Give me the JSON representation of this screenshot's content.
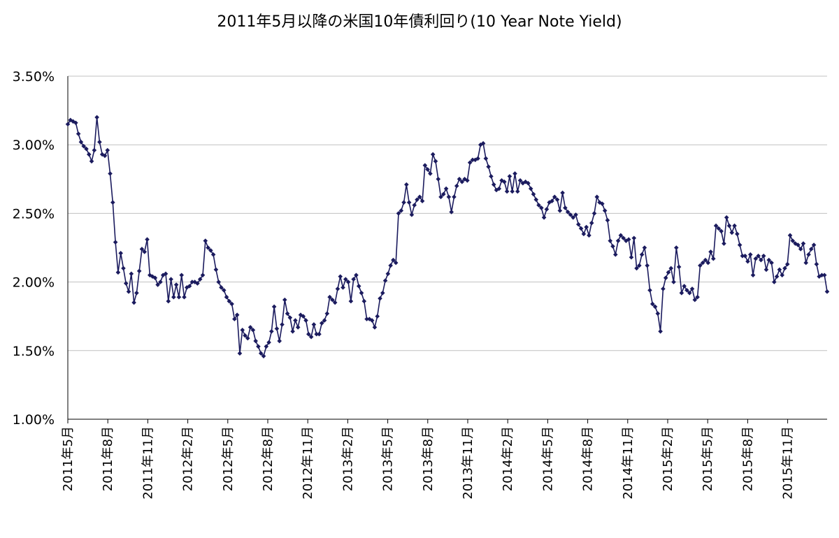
{
  "chart_data": {
    "type": "line",
    "title": "2011年5月以降の米国10年債利回り(10 Year Note Yield)",
    "xlabel": "",
    "ylabel": "",
    "ylim": [
      1.0,
      3.5
    ],
    "y_ticks": [
      "1.00%",
      "1.50%",
      "2.00%",
      "2.50%",
      "3.00%",
      "3.50%"
    ],
    "y_tick_values": [
      1.0,
      1.5,
      2.0,
      2.5,
      3.0,
      3.5
    ],
    "x_tick_labels": [
      "2011年5月",
      "2011年8月",
      "2011年11月",
      "2012年2月",
      "2012年5月",
      "2012年8月",
      "2012年11月",
      "2013年2月",
      "2013年5月",
      "2013年8月",
      "2013年11月",
      "2014年2月",
      "2014年5月",
      "2014年8月",
      "2014年11月",
      "2015年2月",
      "2015年5月",
      "2015年8月",
      "2015年11月"
    ],
    "grid": "horizontal",
    "legend": "none",
    "marker": "diamond",
    "series_color": "#1b1b5e",
    "grid_color": "#c0c0c0",
    "series": [
      {
        "frequency": "weekly",
        "values": [
          3.15,
          3.18,
          3.17,
          3.16,
          3.08,
          3.02,
          2.99,
          2.97,
          2.93,
          2.88,
          2.96,
          3.2,
          3.02,
          2.93,
          2.92,
          2.96,
          2.79,
          2.58,
          2.29,
          2.07,
          2.21,
          2.1,
          1.99,
          1.93,
          2.06,
          1.85,
          1.92,
          2.08,
          2.24,
          2.22,
          2.31,
          2.05,
          2.04,
          2.03,
          1.98,
          2.0,
          2.05,
          2.06,
          1.86,
          2.02,
          1.89,
          1.98,
          1.89,
          2.05,
          1.89,
          1.96,
          1.97,
          2.0,
          2.0,
          1.99,
          2.02,
          2.05,
          2.3,
          2.25,
          2.23,
          2.2,
          2.09,
          2.0,
          1.96,
          1.94,
          1.89,
          1.86,
          1.84,
          1.73,
          1.76,
          1.48,
          1.65,
          1.61,
          1.59,
          1.67,
          1.65,
          1.57,
          1.53,
          1.48,
          1.46,
          1.53,
          1.56,
          1.64,
          1.82,
          1.66,
          1.57,
          1.69,
          1.87,
          1.77,
          1.74,
          1.64,
          1.72,
          1.67,
          1.76,
          1.75,
          1.72,
          1.62,
          1.6,
          1.69,
          1.62,
          1.62,
          1.7,
          1.72,
          1.77,
          1.89,
          1.87,
          1.85,
          1.95,
          2.04,
          1.96,
          2.02,
          2.0,
          1.86,
          2.02,
          2.05,
          1.97,
          1.92,
          1.86,
          1.73,
          1.73,
          1.72,
          1.67,
          1.75,
          1.88,
          1.92,
          2.01,
          2.06,
          2.12,
          2.16,
          2.14,
          2.5,
          2.52,
          2.58,
          2.71,
          2.58,
          2.49,
          2.56,
          2.6,
          2.62,
          2.59,
          2.85,
          2.82,
          2.79,
          2.93,
          2.88,
          2.75,
          2.62,
          2.64,
          2.68,
          2.62,
          2.51,
          2.62,
          2.7,
          2.75,
          2.73,
          2.75,
          2.74,
          2.87,
          2.89,
          2.89,
          2.9,
          3.0,
          3.01,
          2.9,
          2.84,
          2.77,
          2.71,
          2.67,
          2.68,
          2.74,
          2.73,
          2.66,
          2.77,
          2.66,
          2.79,
          2.66,
          2.74,
          2.72,
          2.73,
          2.72,
          2.68,
          2.64,
          2.6,
          2.56,
          2.54,
          2.47,
          2.53,
          2.58,
          2.59,
          2.62,
          2.6,
          2.52,
          2.65,
          2.54,
          2.51,
          2.49,
          2.47,
          2.49,
          2.42,
          2.39,
          2.35,
          2.4,
          2.34,
          2.43,
          2.5,
          2.62,
          2.58,
          2.57,
          2.52,
          2.45,
          2.3,
          2.26,
          2.2,
          2.3,
          2.34,
          2.32,
          2.3,
          2.31,
          2.18,
          2.32,
          2.1,
          2.12,
          2.2,
          2.25,
          2.12,
          1.94,
          1.84,
          1.82,
          1.77,
          1.64,
          1.95,
          2.03,
          2.07,
          2.1,
          2.0,
          2.25,
          2.11,
          1.92,
          1.97,
          1.94,
          1.92,
          1.95,
          1.87,
          1.89,
          2.12,
          2.14,
          2.16,
          2.14,
          2.22,
          2.17,
          2.41,
          2.39,
          2.37,
          2.28,
          2.47,
          2.41,
          2.36,
          2.41,
          2.35,
          2.27,
          2.19,
          2.19,
          2.15,
          2.2,
          2.05,
          2.17,
          2.19,
          2.16,
          2.19,
          2.09,
          2.16,
          2.14,
          2.0,
          2.04,
          2.09,
          2.05,
          2.1,
          2.13,
          2.34,
          2.3,
          2.28,
          2.27,
          2.24,
          2.28,
          2.14,
          2.2,
          2.24,
          2.27,
          2.13,
          2.04,
          2.05,
          2.05,
          1.93
        ]
      }
    ]
  }
}
